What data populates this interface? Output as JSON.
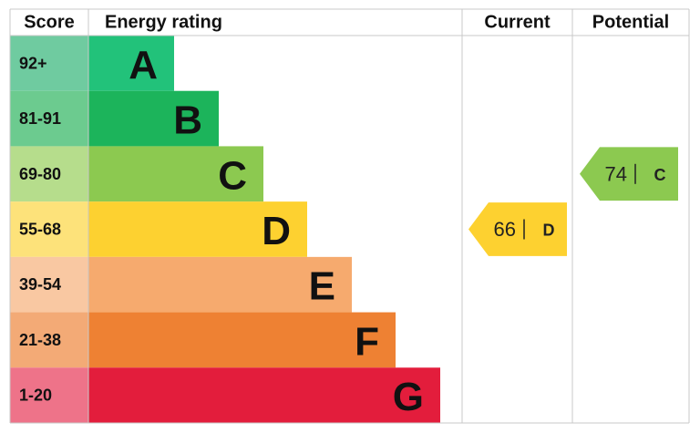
{
  "header": {
    "score": "Score",
    "rating": "Energy rating",
    "current": "Current",
    "potential": "Potential"
  },
  "bands": [
    {
      "score": "92+",
      "letter": "A",
      "color": "#22c27a",
      "score_color": "#6fcba0"
    },
    {
      "score": "81-91",
      "letter": "B",
      "color": "#1cb45b",
      "score_color": "#6ccb8f"
    },
    {
      "score": "69-80",
      "letter": "C",
      "color": "#8cc950",
      "score_color": "#b6dd8c"
    },
    {
      "score": "55-68",
      "letter": "D",
      "color": "#fdd130",
      "score_color": "#fde27a"
    },
    {
      "score": "39-54",
      "letter": "E",
      "color": "#f6aa6e",
      "score_color": "#f9c8a2"
    },
    {
      "score": "21-38",
      "letter": "F",
      "color": "#ee8133",
      "score_color": "#f3aa76"
    },
    {
      "score": "1-20",
      "letter": "G",
      "color": "#e31d3c",
      "score_color": "#ee7389"
    }
  ],
  "current": {
    "value": 66,
    "letter": "D"
  },
  "potential": {
    "value": 74,
    "letter": "C"
  }
}
